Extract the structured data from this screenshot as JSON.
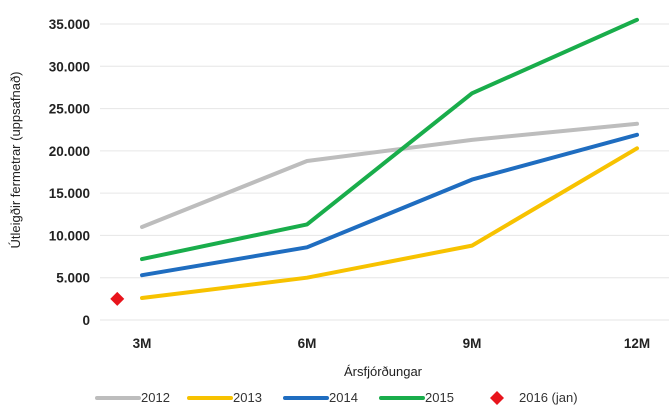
{
  "chart_data": {
    "type": "line",
    "title": "",
    "xlabel": "Ársfjórðungar",
    "ylabel": "Útleigðir fermetrar (uppsafnað)",
    "categories": [
      "3M",
      "6M",
      "9M",
      "12M"
    ],
    "ylim": [
      0,
      35000
    ],
    "yticks": [
      0,
      5000,
      10000,
      15000,
      20000,
      25000,
      30000,
      35000
    ],
    "ytick_labels": [
      "0",
      "5.000",
      "10.000",
      "15.000",
      "20.000",
      "25.000",
      "30.000",
      "35.000"
    ],
    "grid": "horizontal",
    "legend_position": "bottom",
    "series": [
      {
        "name": "2012",
        "color": "#bdbdbd",
        "values": [
          11000,
          18800,
          21300,
          23200
        ]
      },
      {
        "name": "2013",
        "color": "#f7c200",
        "values": [
          2600,
          5000,
          8800,
          20300
        ]
      },
      {
        "name": "2014",
        "color": "#1f6dc0",
        "values": [
          5300,
          8600,
          16600,
          21900
        ]
      },
      {
        "name": "2015",
        "color": "#19ad4b",
        "values": [
          7200,
          11300,
          26800,
          35500
        ]
      }
    ],
    "points": [
      {
        "name": "2016 (jan)",
        "color": "#e8141c",
        "x_offset": -0.15,
        "value": 2500
      }
    ]
  }
}
